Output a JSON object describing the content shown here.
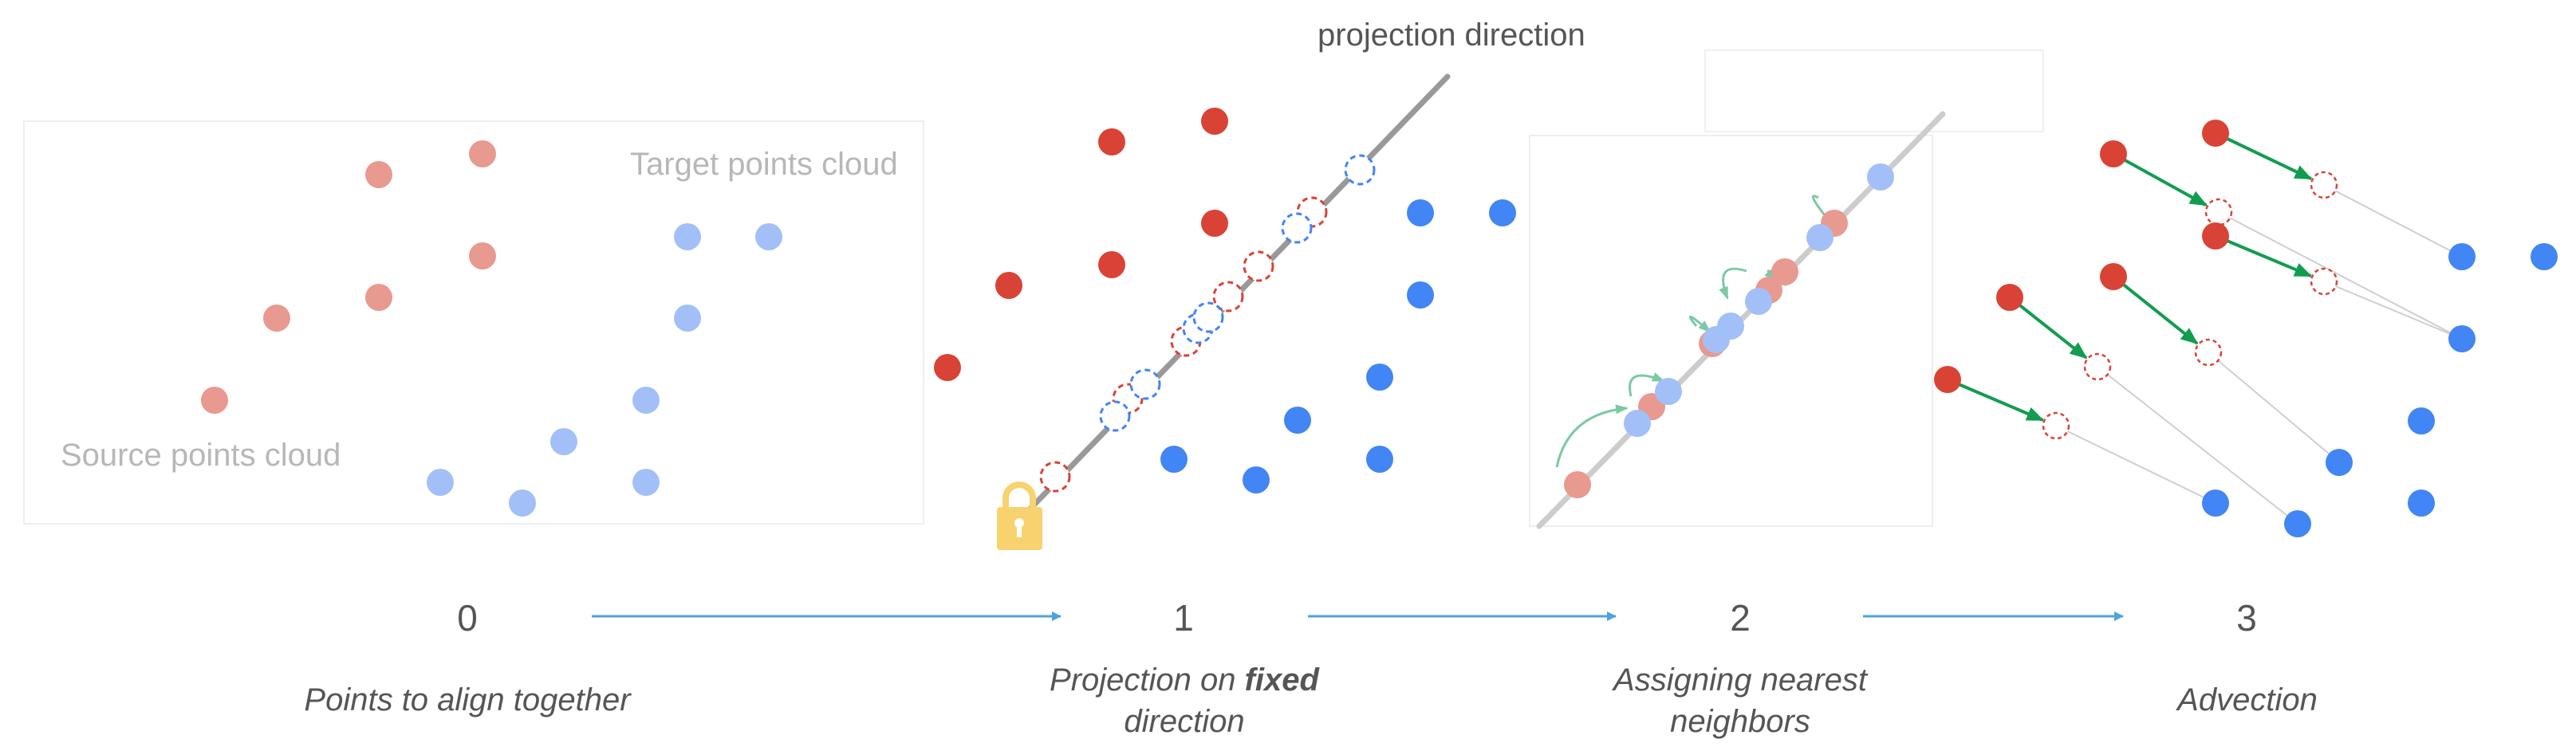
{
  "labels": {
    "target_cloud": "Target points cloud",
    "source_cloud": "Source points cloud",
    "projection_direction": "projection direction"
  },
  "steps": [
    {
      "number": "0",
      "caption": "Points to align together"
    },
    {
      "number": "1",
      "caption_pre": "Projection on ",
      "caption_bold": "fixed",
      "caption_post": "direction"
    },
    {
      "number": "2",
      "caption": "Assigning nearest neighbors"
    },
    {
      "number": "3",
      "caption": "Advection"
    }
  ],
  "icons": {
    "lock": "lock-icon",
    "step_arrow": "right-arrow-icon"
  },
  "colors": {
    "source_point": "#d94335",
    "source_point_faded": "#e89990",
    "target_point": "#4285f4",
    "target_point_faded": "#a2bff8",
    "advection_arrow": "#129c50",
    "matching_arrow": "#7cc9a4",
    "projection_line": "#999999",
    "step_arrow": "#4ea3dc",
    "lock": "#f8d26e"
  }
}
